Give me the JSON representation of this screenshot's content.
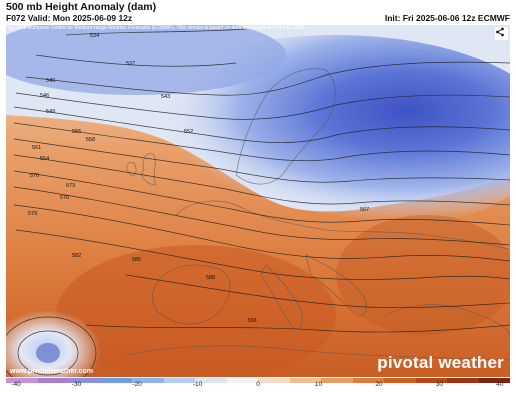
{
  "header": {
    "title": "500 mb Height Anomaly (dam)",
    "valid": "F072 Valid: Mon 2025-06-09 12z",
    "init": "Init: Fri 2025-06-06 12z ECMWF"
  },
  "map": {
    "copyright": "(c) 2025 European Centre for Medium-range Weather Forecasts (ECMWF). This service is based on data and products of the ECMWF",
    "website": "www.pivotalweather.com",
    "logo": "pivotal weather",
    "share_icon": "share-icon",
    "contour_labels": [
      "534",
      "537",
      "540",
      "543",
      "546",
      "549",
      "552",
      "555",
      "558",
      "561",
      "564",
      "567",
      "570",
      "573",
      "576",
      "579",
      "582",
      "585",
      "588",
      "591"
    ]
  },
  "colorbar": {
    "ticks": [
      "-40",
      "-30",
      "-20",
      "-10",
      "0",
      "10",
      "20",
      "30",
      "40"
    ],
    "colors": [
      "#c98fd8",
      "#a97fd6",
      "#8a8fe0",
      "#6f9de6",
      "#8cb4ea",
      "#b6cdee",
      "#dbe5f2",
      "#f2f2f2",
      "#f4dcc8",
      "#efbf98",
      "#e99d66",
      "#e07c3a",
      "#d05e22",
      "#b8461a",
      "#9c3414",
      "#7c2510"
    ]
  }
}
